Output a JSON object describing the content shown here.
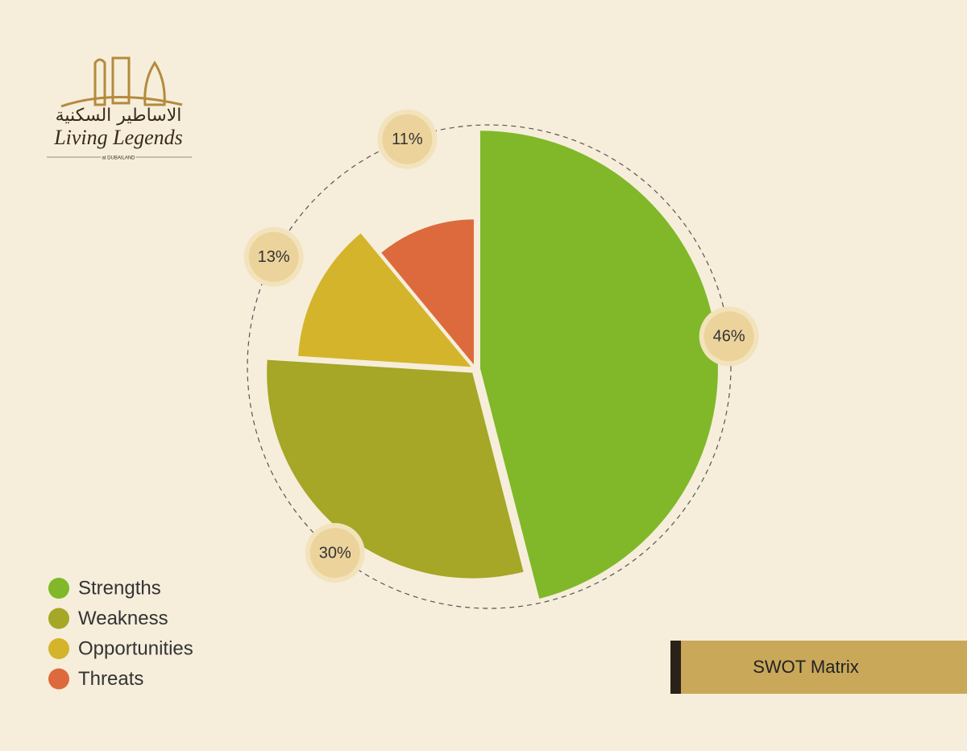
{
  "logo": {
    "arabic": "الاساطير السكنية",
    "name": "Living Legends",
    "tagline": "at DUBAILAND"
  },
  "chart_data": {
    "type": "pie",
    "title": "SWOT Matrix",
    "categories": [
      "Strengths",
      "Weakness",
      "Opportunities",
      "Threats"
    ],
    "values": [
      46,
      30,
      13,
      11
    ],
    "value_labels": [
      "46%",
      "30%",
      "13%",
      "11%"
    ],
    "colors": [
      "#80b829",
      "#a6a627",
      "#d4b42a",
      "#dd6a3c"
    ],
    "legend": "bottom-left"
  }
}
